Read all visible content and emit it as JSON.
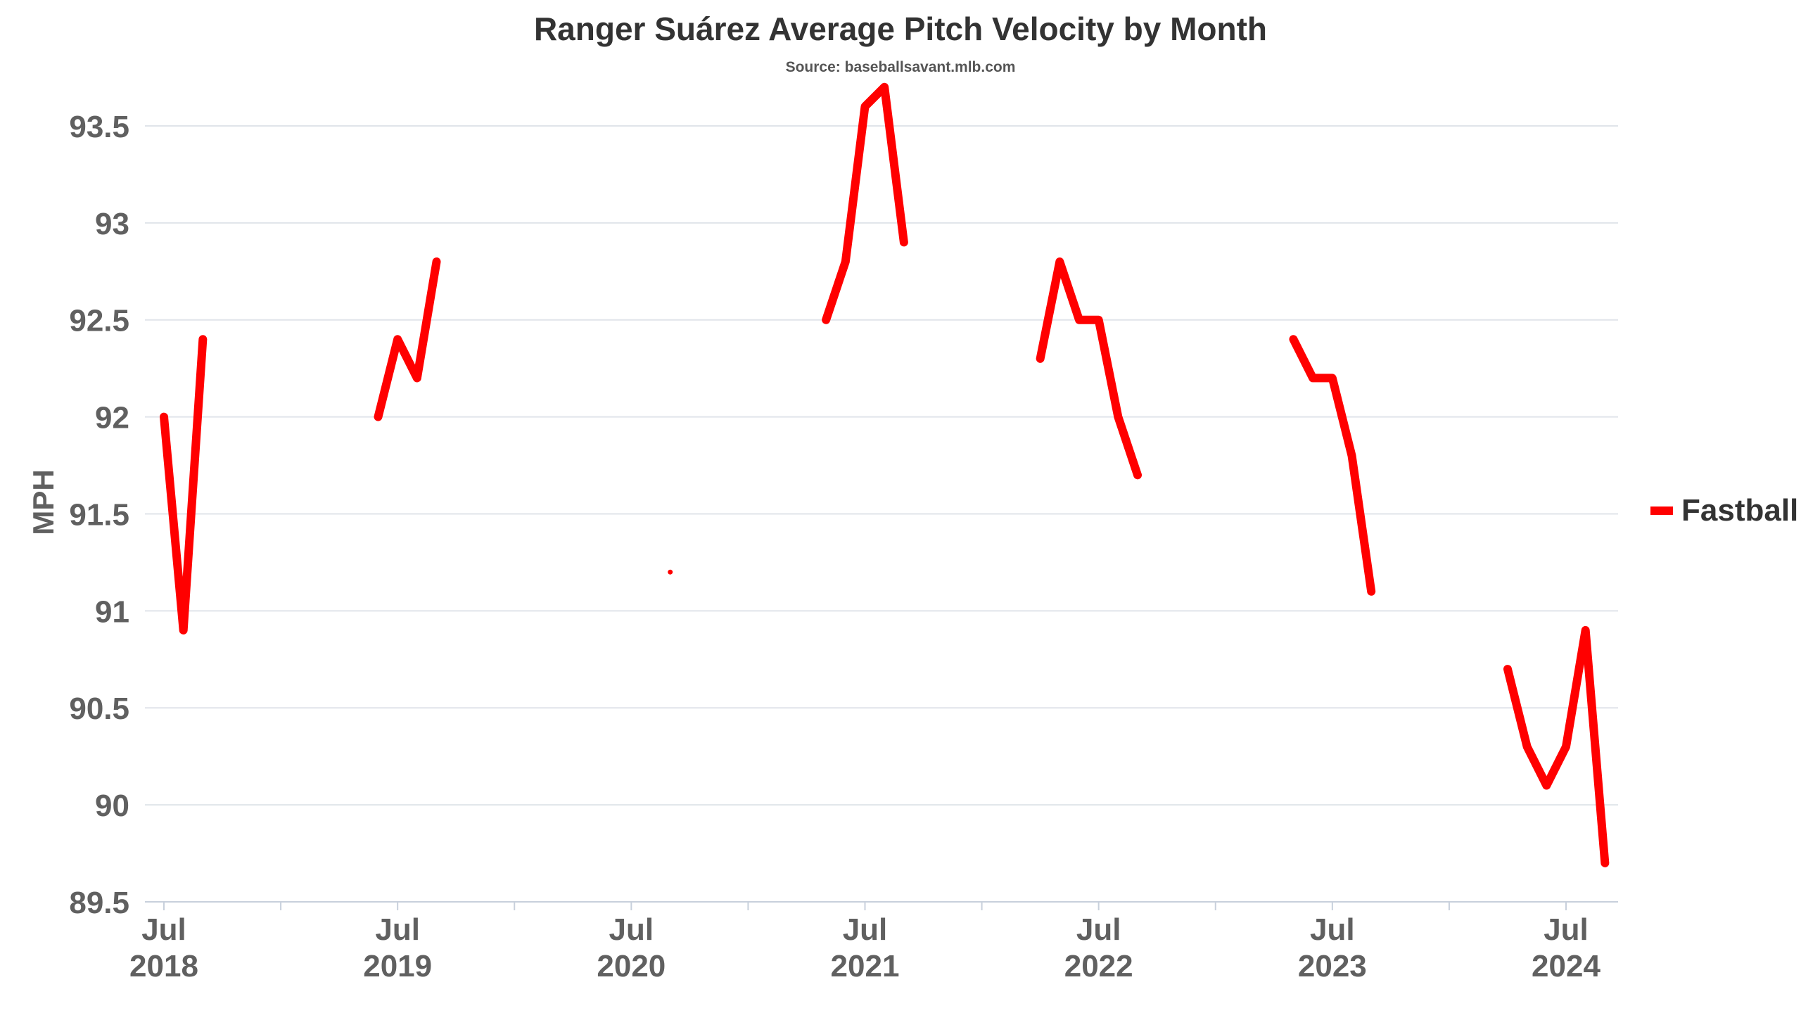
{
  "chart_data": {
    "type": "line",
    "title": "Ranger Suárez Average Pitch Velocity by Month",
    "subtitle": "Source: baseballsavant.mlb.com",
    "ylabel": "MPH",
    "xlabel": "",
    "ylim": [
      89.5,
      93.75
    ],
    "yticks": [
      "89.5",
      "90",
      "90.5",
      "91",
      "91.5",
      "92",
      "92.5",
      "93",
      "93.5"
    ],
    "xticks": [
      {
        "month": "Jul",
        "year": "2018"
      },
      {
        "month": "Jul",
        "year": "2019"
      },
      {
        "month": "Jul",
        "year": "2020"
      },
      {
        "month": "Jul",
        "year": "2021"
      },
      {
        "month": "Jul",
        "year": "2022"
      },
      {
        "month": "Jul",
        "year": "2023"
      },
      {
        "month": "Jul",
        "year": "2024"
      }
    ],
    "grid": true,
    "legend_position": "right",
    "series": [
      {
        "name": "Fastball",
        "color": "#ff0000",
        "segments": [
          [
            [
              "2018-07",
              92.0
            ],
            [
              "2018-08",
              90.9
            ],
            [
              "2018-09",
              92.4
            ]
          ],
          [
            [
              "2019-06",
              92.0
            ],
            [
              "2019-07",
              92.4
            ],
            [
              "2019-08",
              92.2
            ],
            [
              "2019-09",
              92.8
            ]
          ],
          [
            [
              "2020-09",
              91.2
            ]
          ],
          [
            [
              "2021-05",
              92.5
            ],
            [
              "2021-06",
              92.8
            ],
            [
              "2021-07",
              93.6
            ],
            [
              "2021-08",
              93.7
            ],
            [
              "2021-09",
              92.9
            ]
          ],
          [
            [
              "2022-04",
              92.3
            ],
            [
              "2022-05",
              92.8
            ],
            [
              "2022-06",
              92.5
            ],
            [
              "2022-07",
              92.5
            ],
            [
              "2022-08",
              92.0
            ],
            [
              "2022-09",
              91.7
            ]
          ],
          [
            [
              "2023-05",
              92.4
            ],
            [
              "2023-06",
              92.2
            ],
            [
              "2023-07",
              92.2
            ],
            [
              "2023-08",
              91.8
            ],
            [
              "2023-09",
              91.1
            ]
          ],
          [
            [
              "2024-04",
              90.7
            ],
            [
              "2024-05",
              90.3
            ],
            [
              "2024-06",
              90.1
            ],
            [
              "2024-07",
              90.3
            ],
            [
              "2024-08",
              90.9
            ],
            [
              "2024-09",
              89.7
            ]
          ]
        ]
      }
    ]
  }
}
